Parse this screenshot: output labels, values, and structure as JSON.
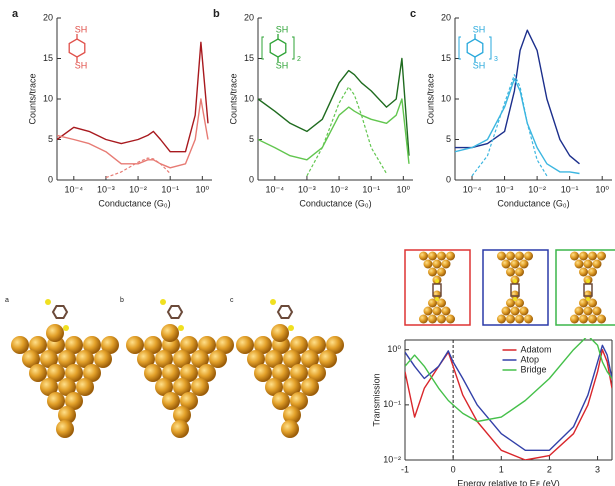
{
  "chart_data": [
    {
      "type": "line",
      "panel": "a",
      "xlabel": "Conductance (G₀)",
      "ylabel": "Counts/trace",
      "xlog": true,
      "xlim": [
        3e-05,
        2
      ],
      "xticks": [
        {
          "value": 0.0001,
          "label": "10⁻⁴"
        },
        {
          "value": 0.001,
          "label": "10⁻³"
        },
        {
          "value": 0.01,
          "label": "10⁻²"
        },
        {
          "value": 0.1,
          "label": "10⁻¹"
        },
        {
          "value": 1,
          "label": "10⁰"
        }
      ],
      "ylim": [
        0,
        20
      ],
      "yticks": [
        0,
        5,
        10,
        15,
        20
      ],
      "x": [
        3e-05,
        0.0001,
        0.0003,
        0.001,
        0.003,
        0.01,
        0.02,
        0.03,
        0.05,
        0.1,
        0.3,
        0.6,
        0.9,
        1.5
      ],
      "series": [
        {
          "color": "#a8191e",
          "values": [
            5,
            6.5,
            6,
            5,
            4.5,
            5,
            5.5,
            6,
            5,
            3.5,
            3.5,
            8,
            17,
            7
          ]
        },
        {
          "color": "#e77b74",
          "values": [
            5.5,
            5,
            4.5,
            3.5,
            2,
            2,
            2.5,
            2.5,
            2,
            1.5,
            2,
            5,
            10,
            5
          ]
        },
        {
          "color": "#e77b74",
          "dash": true,
          "values": [
            null,
            null,
            null,
            0.3,
            1,
            2.2,
            2.7,
            2.6,
            2,
            0.8,
            null,
            null,
            null,
            null
          ]
        }
      ],
      "molecule": {
        "color": "#e0504a",
        "top": "SH",
        "bottom": "SH"
      }
    },
    {
      "type": "line",
      "panel": "b",
      "xlabel": "Conductance (G₀)",
      "ylabel": "Counts/trace",
      "xlog": true,
      "xlim": [
        3e-05,
        2
      ],
      "xticks": [
        {
          "value": 0.0001,
          "label": "10⁻⁴"
        },
        {
          "value": 0.001,
          "label": "10⁻³"
        },
        {
          "value": 0.01,
          "label": "10⁻²"
        },
        {
          "value": 0.1,
          "label": "10⁻¹"
        },
        {
          "value": 1,
          "label": "10⁰"
        }
      ],
      "ylim": [
        0,
        20
      ],
      "yticks": [
        0,
        5,
        10,
        15,
        20
      ],
      "x": [
        3e-05,
        0.0001,
        0.0003,
        0.001,
        0.003,
        0.01,
        0.02,
        0.03,
        0.05,
        0.1,
        0.3,
        0.6,
        0.9,
        1.5
      ],
      "series": [
        {
          "color": "#1f6b1f",
          "values": [
            10,
            8.5,
            7,
            6,
            7.5,
            12,
            13.5,
            13,
            12,
            11,
            9,
            10,
            15,
            3
          ]
        },
        {
          "color": "#62c64f",
          "values": [
            5,
            4,
            3,
            2.5,
            4,
            8,
            9,
            8.5,
            8,
            7.5,
            7,
            8,
            10,
            2
          ]
        },
        {
          "color": "#62c64f",
          "dash": true,
          "values": [
            null,
            null,
            null,
            0.5,
            4,
            9.5,
            11.5,
            10.5,
            8,
            4,
            0.8,
            null,
            null,
            null
          ]
        }
      ],
      "molecule": {
        "color": "#2ea336",
        "top": "SH",
        "bottom": "SH",
        "n": "2"
      }
    },
    {
      "type": "line",
      "panel": "c",
      "xlabel": "Conductance (G₀)",
      "ylabel": "Counts/trace",
      "xlog": true,
      "xlim": [
        3e-05,
        2
      ],
      "xticks": [
        {
          "value": 0.0001,
          "label": "10⁻⁴"
        },
        {
          "value": 0.001,
          "label": "10⁻³"
        },
        {
          "value": 0.01,
          "label": "10⁻²"
        },
        {
          "value": 0.1,
          "label": "10⁻¹"
        },
        {
          "value": 1,
          "label": "10⁰"
        }
      ],
      "ylim": [
        0,
        20
      ],
      "yticks": [
        0,
        5,
        10,
        15,
        20
      ],
      "x": [
        3e-05,
        0.0001,
        0.0003,
        0.001,
        0.002,
        0.003,
        0.005,
        0.01,
        0.02,
        0.05,
        0.1,
        0.2
      ],
      "series": [
        {
          "color": "#1c2f8c",
          "values": [
            4,
            4,
            4.5,
            6,
            11,
            16,
            18.5,
            16,
            10,
            5,
            3,
            2
          ]
        },
        {
          "color": "#3cb6e0",
          "values": [
            3.5,
            4,
            5,
            9,
            12.5,
            11,
            7,
            4,
            2,
            1,
            1,
            0.8
          ]
        },
        {
          "color": "#3cb6e0",
          "dash": true,
          "values": [
            null,
            0.5,
            3,
            9.5,
            13,
            11.5,
            7,
            2.5,
            0.5,
            null,
            null,
            null
          ]
        }
      ],
      "molecule": {
        "color": "#29a9dc",
        "top": "SH",
        "bottom": "SH",
        "n": "3"
      }
    },
    {
      "type": "line",
      "xlabel": "Energy relative to Eꜰ (eV)",
      "ylabel": "Transmission",
      "ylog": true,
      "box": true,
      "xlim": [
        -1,
        3.3
      ],
      "xticks": [
        -1,
        0,
        1,
        2,
        3
      ],
      "ylim": [
        0.01,
        1.5
      ],
      "yticks": [
        {
          "value": 0.01,
          "label": "10⁻²"
        },
        {
          "value": 0.1,
          "label": "10⁻¹"
        },
        {
          "value": 1,
          "label": "10⁰"
        }
      ],
      "vline": 0,
      "legend": "upper center",
      "x": [
        -1,
        -0.8,
        -0.6,
        -0.3,
        -0.1,
        0,
        0.2,
        0.5,
        1,
        1.5,
        2,
        2.5,
        2.8,
        3,
        3.1,
        3.2,
        3.3
      ],
      "series": [
        {
          "name": "Adatom",
          "color": "#d9262b",
          "values": [
            0.4,
            0.06,
            0.2,
            0.5,
            0.9,
            0.5,
            0.15,
            0.05,
            0.015,
            0.01,
            0.012,
            0.03,
            0.1,
            0.4,
            1,
            0.6,
            0.2
          ]
        },
        {
          "name": "Atop",
          "color": "#3240a8",
          "values": [
            0.9,
            0.5,
            0.3,
            0.5,
            0.95,
            0.6,
            0.3,
            0.1,
            0.03,
            0.015,
            0.015,
            0.04,
            0.15,
            0.6,
            1.2,
            0.8,
            0.3
          ]
        },
        {
          "name": "Bridge",
          "color": "#45c04a",
          "values": [
            0.5,
            0.8,
            0.5,
            0.2,
            0.12,
            0.1,
            0.07,
            0.05,
            0.06,
            0.12,
            0.3,
            1,
            1.8,
            1.2,
            0.6,
            0.4,
            0.3
          ]
        }
      ]
    }
  ],
  "renderings": {
    "labels": [
      "a",
      "b",
      "c"
    ]
  }
}
